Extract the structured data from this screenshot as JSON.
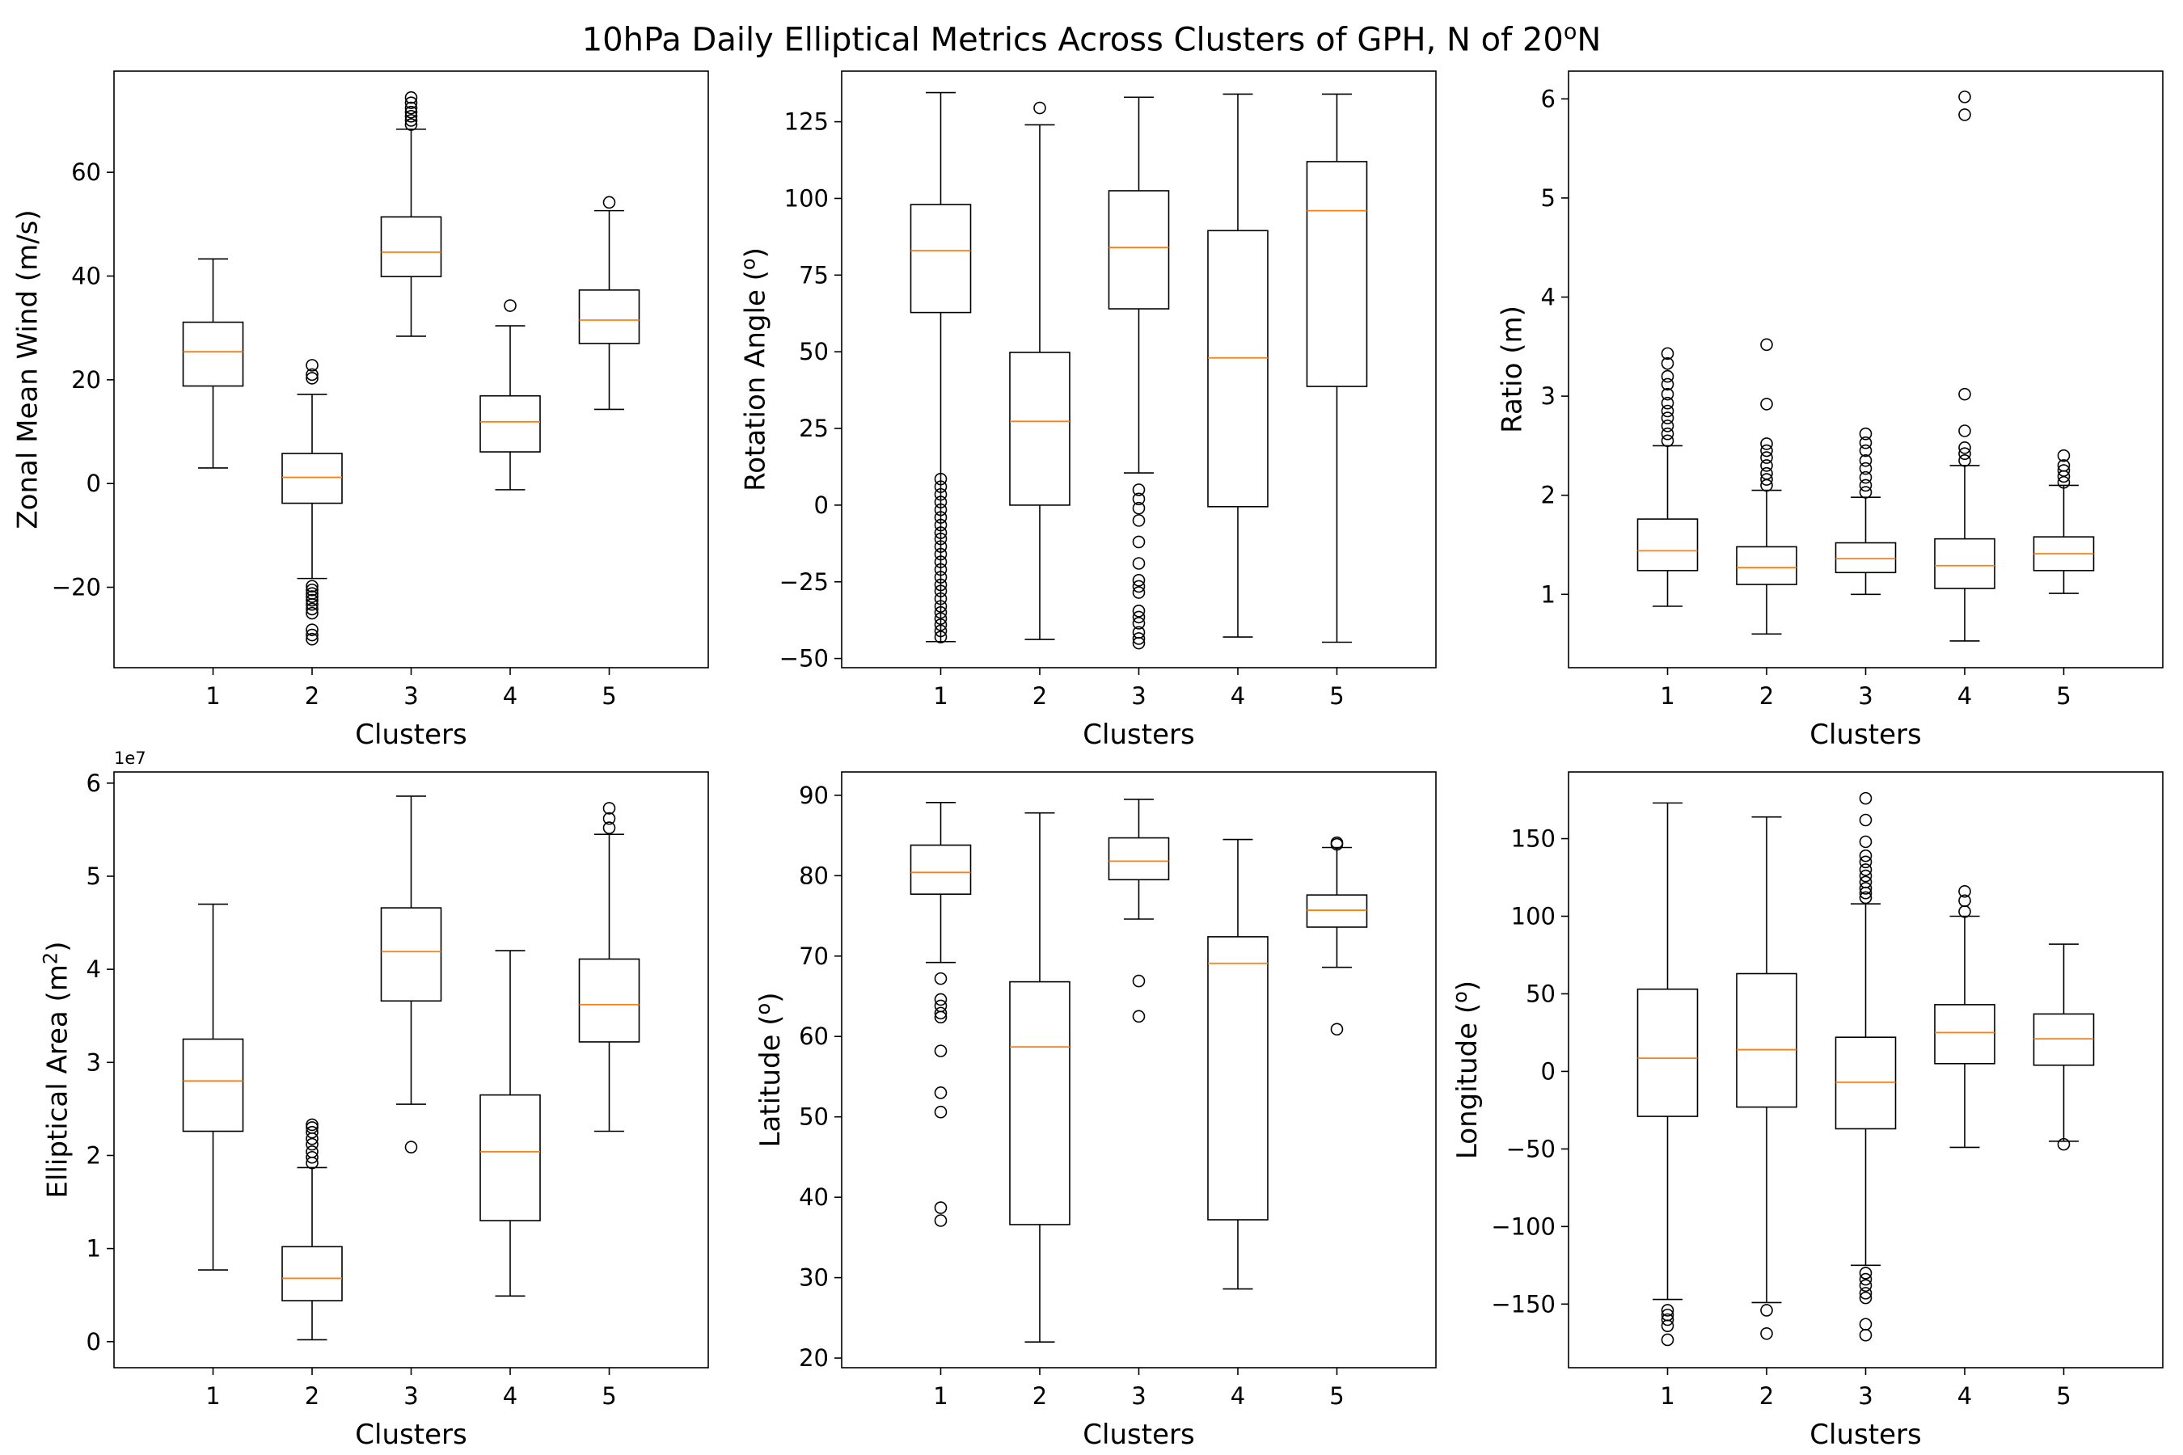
{
  "figure": {
    "title_main": "10hPa Daily Elliptical Metrics Across Clusters of GPH, N of 20",
    "title_sup": "o",
    "title_end": "N"
  },
  "colors": {
    "median": "#ff7f0e",
    "box": "#000000",
    "background": "#ffffff"
  },
  "chart_data": [
    {
      "type": "box",
      "ylabel": "Zonal Mean Wind (m/s)",
      "xlabel": "Clusters",
      "categories": [
        "1",
        "2",
        "3",
        "4",
        "5"
      ],
      "ylim": [
        -35.5,
        79.5
      ],
      "yticks": [
        -20,
        0,
        20,
        40,
        60
      ],
      "ytick_labels": [
        "−20",
        "0",
        "20",
        "40",
        "60"
      ],
      "boxes": [
        {
          "whislo": 3,
          "q1": 18.8,
          "median": 25.4,
          "q3": 31.1,
          "whishi": 43.3,
          "fliers": []
        },
        {
          "whislo": -18.3,
          "q1": -3.8,
          "median": 1.2,
          "q3": 5.8,
          "whishi": 17.2,
          "fliers": [
            20.3,
            21,
            22.8,
            -19.8,
            -20.5,
            -21.2,
            -21.8,
            -22.5,
            -23.3,
            -24.2,
            -25,
            -28.2,
            -29.2,
            -30
          ]
        },
        {
          "whislo": 28.4,
          "q1": 39.9,
          "median": 44.6,
          "q3": 51.4,
          "whishi": 68.3,
          "fliers": [
            69.2,
            70,
            70.8,
            71.6,
            72.4,
            73.4,
            74.4
          ]
        },
        {
          "whislo": -1.2,
          "q1": 6.1,
          "median": 11.9,
          "q3": 16.9,
          "whishi": 30.4,
          "fliers": [
            34.3
          ]
        },
        {
          "whislo": 14.3,
          "q1": 27,
          "median": 31.5,
          "q3": 37.3,
          "whishi": 52.6,
          "fliers": [
            54.2
          ]
        }
      ]
    },
    {
      "type": "box",
      "ylabel": "Rotation Angle (",
      "ylabel_sup": "o",
      "ylabel_end": ")",
      "xlabel": "Clusters",
      "categories": [
        "1",
        "2",
        "3",
        "4",
        "5"
      ],
      "ylim": [
        -53,
        141.5
      ],
      "yticks": [
        -50,
        -25,
        0,
        25,
        50,
        75,
        100,
        125
      ],
      "ytick_labels": [
        "−50",
        "−25",
        "0",
        "25",
        "50",
        "75",
        "100",
        "125"
      ],
      "boxes": [
        {
          "whislo": -44.5,
          "q1": 62.8,
          "median": 83,
          "q3": 98,
          "whishi": 134.5,
          "fliers": [
            8.5,
            6,
            3.5,
            1,
            -1.5,
            -4,
            -6.5,
            -9,
            -11,
            -13.5,
            -16,
            -18.5,
            -21,
            -23.5,
            -26,
            -28,
            -30.5,
            -33,
            -35,
            -37,
            -39,
            -41,
            -43
          ]
        },
        {
          "whislo": -43.8,
          "q1": 0,
          "median": 27.3,
          "q3": 49.8,
          "whishi": 124,
          "fliers": [
            129.5
          ]
        },
        {
          "whislo": 10.5,
          "q1": 64,
          "median": 84,
          "q3": 102.5,
          "whishi": 133,
          "fliers": [
            5,
            2,
            -1,
            -5,
            -12,
            -19,
            -24.5,
            -26.5,
            -28.5,
            -34.5,
            -36.5,
            -38.5,
            -41.5,
            -43.5,
            -45
          ]
        },
        {
          "whislo": -43,
          "q1": -0.5,
          "median": 48,
          "q3": 89.5,
          "whishi": 134,
          "fliers": []
        },
        {
          "whislo": -44.7,
          "q1": 38.7,
          "median": 96,
          "q3": 112,
          "whishi": 134,
          "fliers": []
        }
      ]
    },
    {
      "type": "box",
      "ylabel": "Ratio (m)",
      "xlabel": "Clusters",
      "categories": [
        "1",
        "2",
        "3",
        "4",
        "5"
      ],
      "ylim": [
        0.26,
        6.28
      ],
      "yticks": [
        1,
        2,
        3,
        4,
        5,
        6
      ],
      "ytick_labels": [
        "1",
        "2",
        "3",
        "4",
        "5",
        "6"
      ],
      "boxes": [
        {
          "whislo": 0.88,
          "q1": 1.24,
          "median": 1.44,
          "q3": 1.76,
          "whishi": 2.5,
          "fliers": [
            2.55,
            2.62,
            2.7,
            2.78,
            2.85,
            2.93,
            3.02,
            3.12,
            3.2,
            3.33,
            3.43
          ]
        },
        {
          "whislo": 0.6,
          "q1": 1.1,
          "median": 1.27,
          "q3": 1.48,
          "whishi": 2.05,
          "fliers": [
            2.1,
            2.16,
            2.22,
            2.3,
            2.38,
            2.45,
            2.52,
            2.92,
            3.52
          ]
        },
        {
          "whislo": 1,
          "q1": 1.22,
          "median": 1.36,
          "q3": 1.52,
          "whishi": 1.98,
          "fliers": [
            2.03,
            2.1,
            2.18,
            2.27,
            2.35,
            2.45,
            2.53,
            2.62
          ]
        },
        {
          "whislo": 0.53,
          "q1": 1.06,
          "median": 1.29,
          "q3": 1.56,
          "whishi": 2.3,
          "fliers": [
            2.35,
            2.42,
            2.48,
            2.65,
            3.02,
            5.84,
            6.02
          ]
        },
        {
          "whislo": 1.01,
          "q1": 1.24,
          "median": 1.41,
          "q3": 1.58,
          "whishi": 2.1,
          "fliers": [
            2.13,
            2.19,
            2.25,
            2.3,
            2.4
          ]
        }
      ]
    },
    {
      "type": "box",
      "ylabel": "Elliptical Area (m",
      "ylabel_sup": "2",
      "ylabel_end": ")",
      "xlabel": "Clusters",
      "offset_text": "1e7",
      "categories": [
        "1",
        "2",
        "3",
        "4",
        "5"
      ],
      "ylim": [
        -0.28,
        6.12
      ],
      "yticks": [
        0,
        1,
        2,
        3,
        4,
        5,
        6
      ],
      "ytick_labels": [
        "0",
        "1",
        "2",
        "3",
        "4",
        "5",
        "6"
      ],
      "boxes": [
        {
          "whislo": 0.77,
          "q1": 2.26,
          "median": 2.8,
          "q3": 3.25,
          "whishi": 4.7,
          "fliers": []
        },
        {
          "whislo": 0.02,
          "q1": 0.44,
          "median": 0.68,
          "q3": 1.02,
          "whishi": 1.87,
          "fliers": [
            1.92,
            1.98,
            2.04,
            2.12,
            2.18,
            2.25,
            2.3,
            2.33
          ]
        },
        {
          "whislo": 2.55,
          "q1": 3.66,
          "median": 4.19,
          "q3": 4.66,
          "whishi": 5.86,
          "fliers": [
            2.09
          ]
        },
        {
          "whislo": 0.49,
          "q1": 1.3,
          "median": 2.04,
          "q3": 2.65,
          "whishi": 4.2,
          "fliers": []
        },
        {
          "whislo": 2.26,
          "q1": 3.22,
          "median": 3.62,
          "q3": 4.11,
          "whishi": 5.45,
          "fliers": [
            5.52,
            5.62,
            5.73
          ]
        }
      ]
    },
    {
      "type": "box",
      "ylabel": "Latitude (",
      "ylabel_sup": "o",
      "ylabel_end": ")",
      "xlabel": "Clusters",
      "categories": [
        "1",
        "2",
        "3",
        "4",
        "5"
      ],
      "ylim": [
        18.8,
        92.9
      ],
      "yticks": [
        20,
        30,
        40,
        50,
        60,
        70,
        80,
        90
      ],
      "ytick_labels": [
        "20",
        "30",
        "40",
        "50",
        "60",
        "70",
        "80",
        "90"
      ],
      "boxes": [
        {
          "whislo": 69.2,
          "q1": 77.7,
          "median": 80.4,
          "q3": 83.8,
          "whishi": 89.1,
          "fliers": [
            67.2,
            64.6,
            63.8,
            62.9,
            62.4,
            58.2,
            53,
            50.6,
            38.7,
            37.1
          ]
        },
        {
          "whislo": 22,
          "q1": 36.6,
          "median": 58.7,
          "q3": 66.8,
          "whishi": 87.8,
          "fliers": []
        },
        {
          "whislo": 74.6,
          "q1": 79.5,
          "median": 81.8,
          "q3": 84.7,
          "whishi": 89.5,
          "fliers": [
            66.9,
            62.5
          ]
        },
        {
          "whislo": 28.6,
          "q1": 37.2,
          "median": 69.1,
          "q3": 72.4,
          "whishi": 84.5,
          "fliers": []
        },
        {
          "whislo": 68.6,
          "q1": 73.6,
          "median": 75.7,
          "q3": 77.6,
          "whishi": 83.5,
          "fliers": [
            83.9,
            84.1,
            60.9
          ]
        }
      ]
    },
    {
      "type": "box",
      "ylabel": "Longitude (",
      "ylabel_sup": "o",
      "ylabel_end": ")",
      "xlabel": "Clusters",
      "categories": [
        "1",
        "2",
        "3",
        "4",
        "5"
      ],
      "ylim": [
        -191,
        193
      ],
      "yticks": [
        -150,
        -100,
        -50,
        0,
        50,
        100,
        150
      ],
      "ytick_labels": [
        "−150",
        "−100",
        "−50",
        "0",
        "50",
        "100",
        "150"
      ],
      "boxes": [
        {
          "whislo": -147,
          "q1": -29,
          "median": 8.5,
          "q3": 53,
          "whishi": 173,
          "fliers": [
            -154,
            -157,
            -160,
            -164,
            -173
          ]
        },
        {
          "whislo": -149,
          "q1": -23,
          "median": 14,
          "q3": 63,
          "whishi": 164,
          "fliers": [
            -154,
            -169
          ]
        },
        {
          "whislo": -125,
          "q1": -37,
          "median": -7,
          "q3": 22,
          "whishi": 108,
          "fliers": [
            112,
            115,
            118,
            122,
            126,
            130,
            135,
            139,
            148,
            162,
            176,
            -130,
            -134,
            -138,
            -143,
            -146,
            -163,
            -170
          ]
        },
        {
          "whislo": -49,
          "q1": 5,
          "median": 25,
          "q3": 43,
          "whishi": 100,
          "fliers": [
            103,
            110,
            116
          ]
        },
        {
          "whislo": -45,
          "q1": 4,
          "median": 21,
          "q3": 37,
          "whishi": 82,
          "fliers": [
            -47
          ]
        }
      ]
    }
  ]
}
